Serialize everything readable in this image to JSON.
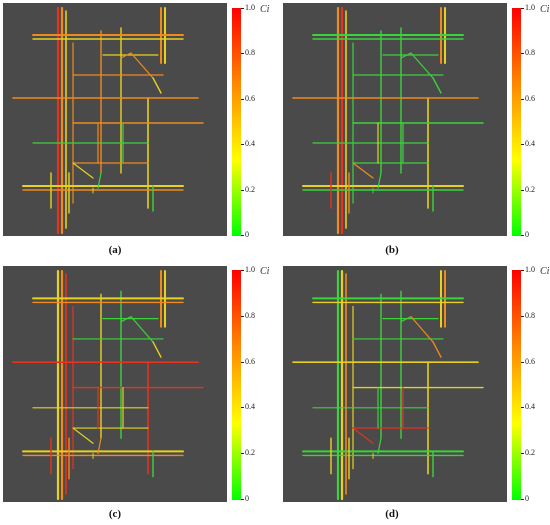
{
  "panels": [
    {
      "id": "a",
      "caption": "(a)"
    },
    {
      "id": "b",
      "caption": "(b)"
    },
    {
      "id": "c",
      "caption": "(c)"
    },
    {
      "id": "d",
      "caption": "(d)"
    }
  ],
  "colorbar": {
    "label": "Ci",
    "ticks": [
      "1.0",
      "0.8",
      "0.6",
      "0.4",
      "0.2",
      "0"
    ],
    "gradient": [
      "#ff0000",
      "#ff8800",
      "#ffff00",
      "#00ff00"
    ]
  },
  "colors": {
    "map_background": "#4a4a4a",
    "red": "#e8321e",
    "orange": "#f08a1c",
    "yellow": "#e6d21e",
    "green": "#3cd23c"
  }
}
